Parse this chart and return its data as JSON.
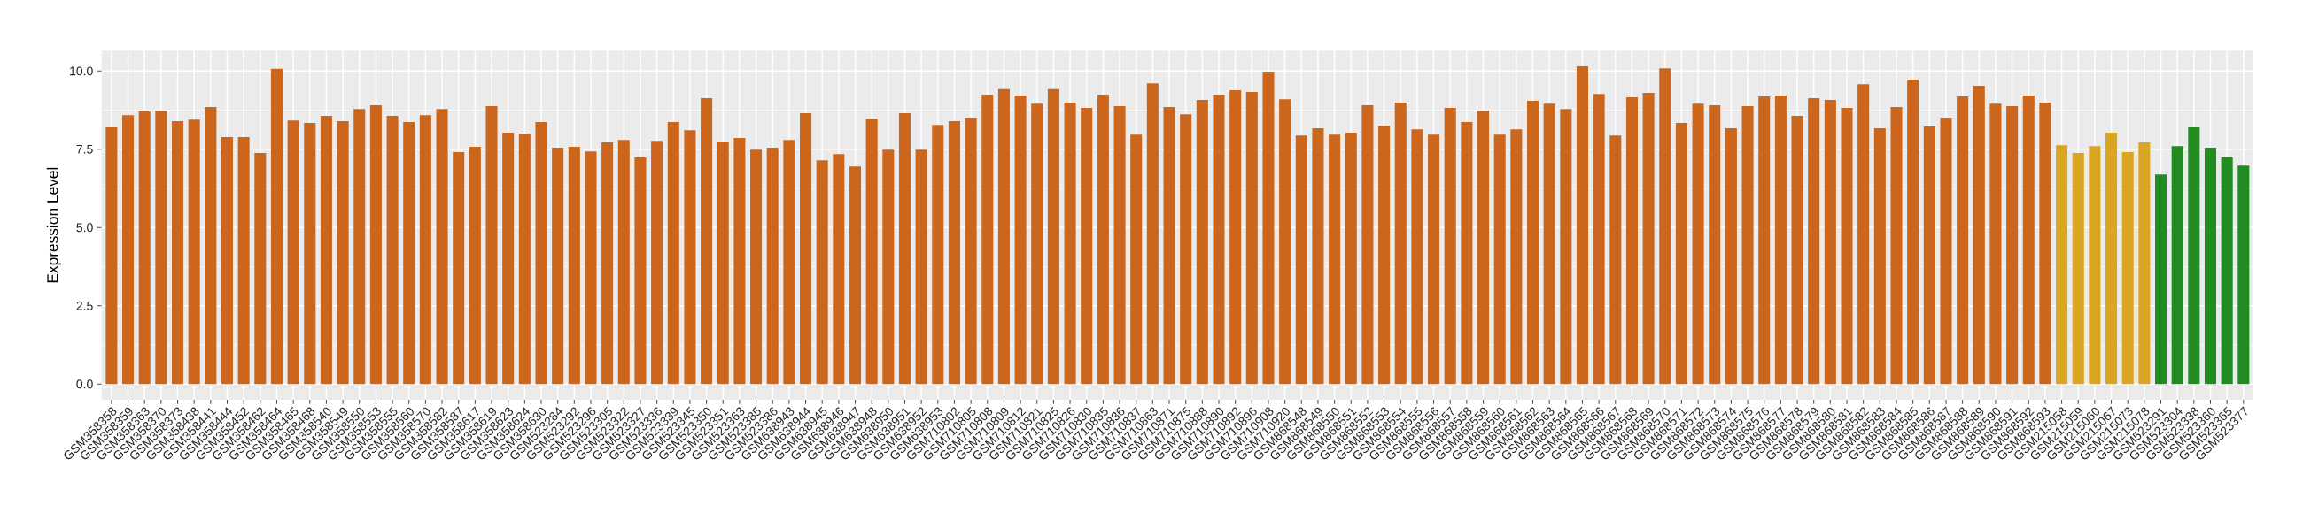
{
  "chart_data": {
    "type": "bar",
    "ylabel": "Expression Level",
    "categories": [
      "GSM358358",
      "GSM358359",
      "GSM358363",
      "GSM358370",
      "GSM358373",
      "GSM358438",
      "GSM358441",
      "GSM358444",
      "GSM358452",
      "GSM358462",
      "GSM358464",
      "GSM358465",
      "GSM358468",
      "GSM358540",
      "GSM358549",
      "GSM358550",
      "GSM358553",
      "GSM358555",
      "GSM358560",
      "GSM358570",
      "GSM358582",
      "GSM358587",
      "GSM358617",
      "GSM358619",
      "GSM358623",
      "GSM358624",
      "GSM358630",
      "GSM523284",
      "GSM523292",
      "GSM523296",
      "GSM523305",
      "GSM523322",
      "GSM523327",
      "GSM523336",
      "GSM523339",
      "GSM523345",
      "GSM523350",
      "GSM523351",
      "GSM523363",
      "GSM523385",
      "GSM523386",
      "GSM638943",
      "GSM638944",
      "GSM638945",
      "GSM638946",
      "GSM638947",
      "GSM638948",
      "GSM638950",
      "GSM638951",
      "GSM638952",
      "GSM638953",
      "GSM710802",
      "GSM710805",
      "GSM710808",
      "GSM710809",
      "GSM710812",
      "GSM710821",
      "GSM710825",
      "GSM710826",
      "GSM710830",
      "GSM710835",
      "GSM710836",
      "GSM710837",
      "GSM710863",
      "GSM710871",
      "GSM710875",
      "GSM710888",
      "GSM710890",
      "GSM710892",
      "GSM710896",
      "GSM710908",
      "GSM710920",
      "GSM868548",
      "GSM868549",
      "GSM868550",
      "GSM868551",
      "GSM868552",
      "GSM868553",
      "GSM868554",
      "GSM868555",
      "GSM868556",
      "GSM868557",
      "GSM868558",
      "GSM868559",
      "GSM868560",
      "GSM868561",
      "GSM868562",
      "GSM868563",
      "GSM868564",
      "GSM868565",
      "GSM868566",
      "GSM868567",
      "GSM868568",
      "GSM868569",
      "GSM868570",
      "GSM868571",
      "GSM868572",
      "GSM868573",
      "GSM868574",
      "GSM868575",
      "GSM868576",
      "GSM868577",
      "GSM868578",
      "GSM868579",
      "GSM868580",
      "GSM868581",
      "GSM868582",
      "GSM868583",
      "GSM868584",
      "GSM868585",
      "GSM868586",
      "GSM868587",
      "GSM868588",
      "GSM868589",
      "GSM868590",
      "GSM868591",
      "GSM868592",
      "GSM868593",
      "GSM215058",
      "GSM215059",
      "GSM215060",
      "GSM215067",
      "GSM215073",
      "GSM215078",
      "GSM523291",
      "GSM523304",
      "GSM523338",
      "GSM523360",
      "GSM523365",
      "GSM523377"
    ],
    "values": [
      8.2,
      8.59,
      8.71,
      8.74,
      8.4,
      8.45,
      8.85,
      7.89,
      7.89,
      7.38,
      10.07,
      8.42,
      8.34,
      8.57,
      8.4,
      8.79,
      8.91,
      8.57,
      8.37,
      8.59,
      8.79,
      7.41,
      7.58,
      8.88,
      8.03,
      8.0,
      8.37,
      7.55,
      7.58,
      7.43,
      7.72,
      7.8,
      7.24,
      7.77,
      8.37,
      8.11,
      9.13,
      7.75,
      7.86,
      7.49,
      7.55,
      7.8,
      8.65,
      7.15,
      7.35,
      6.95,
      8.48,
      7.49,
      8.65,
      7.49,
      8.28,
      8.4,
      8.51,
      9.25,
      9.42,
      9.22,
      8.96,
      9.42,
      8.99,
      8.82,
      9.25,
      8.88,
      7.97,
      9.61,
      8.85,
      8.62,
      9.08,
      9.25,
      9.39,
      9.33,
      9.98,
      9.1,
      7.94,
      8.17,
      7.97,
      8.03,
      8.91,
      8.25,
      8.99,
      8.14,
      7.97,
      8.82,
      8.37,
      8.74,
      7.97,
      8.14,
      9.05,
      8.96,
      8.79,
      10.15,
      9.27,
      7.94,
      9.16,
      9.3,
      10.09,
      8.34,
      8.96,
      8.91,
      8.17,
      8.88,
      9.19,
      9.22,
      8.57,
      9.13,
      9.08,
      8.82,
      9.58,
      8.17,
      8.85,
      9.73,
      8.23,
      8.51,
      9.19,
      9.53,
      8.96,
      8.88,
      9.22,
      8.99,
      7.63,
      7.38,
      7.6,
      8.03,
      7.41,
      7.72,
      6.7,
      7.6,
      8.2,
      7.55,
      7.24,
      6.98
    ],
    "colors": [
      "#cd661d",
      "#cd661d",
      "#cd661d",
      "#cd661d",
      "#cd661d",
      "#cd661d",
      "#cd661d",
      "#cd661d",
      "#cd661d",
      "#cd661d",
      "#cd661d",
      "#cd661d",
      "#cd661d",
      "#cd661d",
      "#cd661d",
      "#cd661d",
      "#cd661d",
      "#cd661d",
      "#cd661d",
      "#cd661d",
      "#cd661d",
      "#cd661d",
      "#cd661d",
      "#cd661d",
      "#cd661d",
      "#cd661d",
      "#cd661d",
      "#cd661d",
      "#cd661d",
      "#cd661d",
      "#cd661d",
      "#cd661d",
      "#cd661d",
      "#cd661d",
      "#cd661d",
      "#cd661d",
      "#cd661d",
      "#cd661d",
      "#cd661d",
      "#cd661d",
      "#cd661d",
      "#cd661d",
      "#cd661d",
      "#cd661d",
      "#cd661d",
      "#cd661d",
      "#cd661d",
      "#cd661d",
      "#cd661d",
      "#cd661d",
      "#cd661d",
      "#cd661d",
      "#cd661d",
      "#cd661d",
      "#cd661d",
      "#cd661d",
      "#cd661d",
      "#cd661d",
      "#cd661d",
      "#cd661d",
      "#cd661d",
      "#cd661d",
      "#cd661d",
      "#cd661d",
      "#cd661d",
      "#cd661d",
      "#cd661d",
      "#cd661d",
      "#cd661d",
      "#cd661d",
      "#cd661d",
      "#cd661d",
      "#cd661d",
      "#cd661d",
      "#cd661d",
      "#cd661d",
      "#cd661d",
      "#cd661d",
      "#cd661d",
      "#cd661d",
      "#cd661d",
      "#cd661d",
      "#cd661d",
      "#cd661d",
      "#cd661d",
      "#cd661d",
      "#cd661d",
      "#cd661d",
      "#cd661d",
      "#cd661d",
      "#cd661d",
      "#cd661d",
      "#cd661d",
      "#cd661d",
      "#cd661d",
      "#cd661d",
      "#cd661d",
      "#cd661d",
      "#cd661d",
      "#cd661d",
      "#cd661d",
      "#cd661d",
      "#cd661d",
      "#cd661d",
      "#cd661d",
      "#cd661d",
      "#cd661d",
      "#cd661d",
      "#cd661d",
      "#cd661d",
      "#cd661d",
      "#cd661d",
      "#cd661d",
      "#cd661d",
      "#cd661d",
      "#cd661d",
      "#cd661d",
      "#cd661d",
      "#daa520",
      "#daa520",
      "#daa520",
      "#daa520",
      "#daa520",
      "#daa520",
      "#228b22",
      "#228b22",
      "#228b22",
      "#228b22",
      "#228b22",
      "#228b22"
    ],
    "ylim": [
      -0.5,
      10.65
    ],
    "yticks": [
      {
        "value": 0,
        "label": "0.0"
      },
      2.5,
      {
        "value": 5,
        "label": "5.0"
      },
      7.5,
      {
        "value": 10,
        "label": "10.0"
      }
    ],
    "grid": true
  }
}
